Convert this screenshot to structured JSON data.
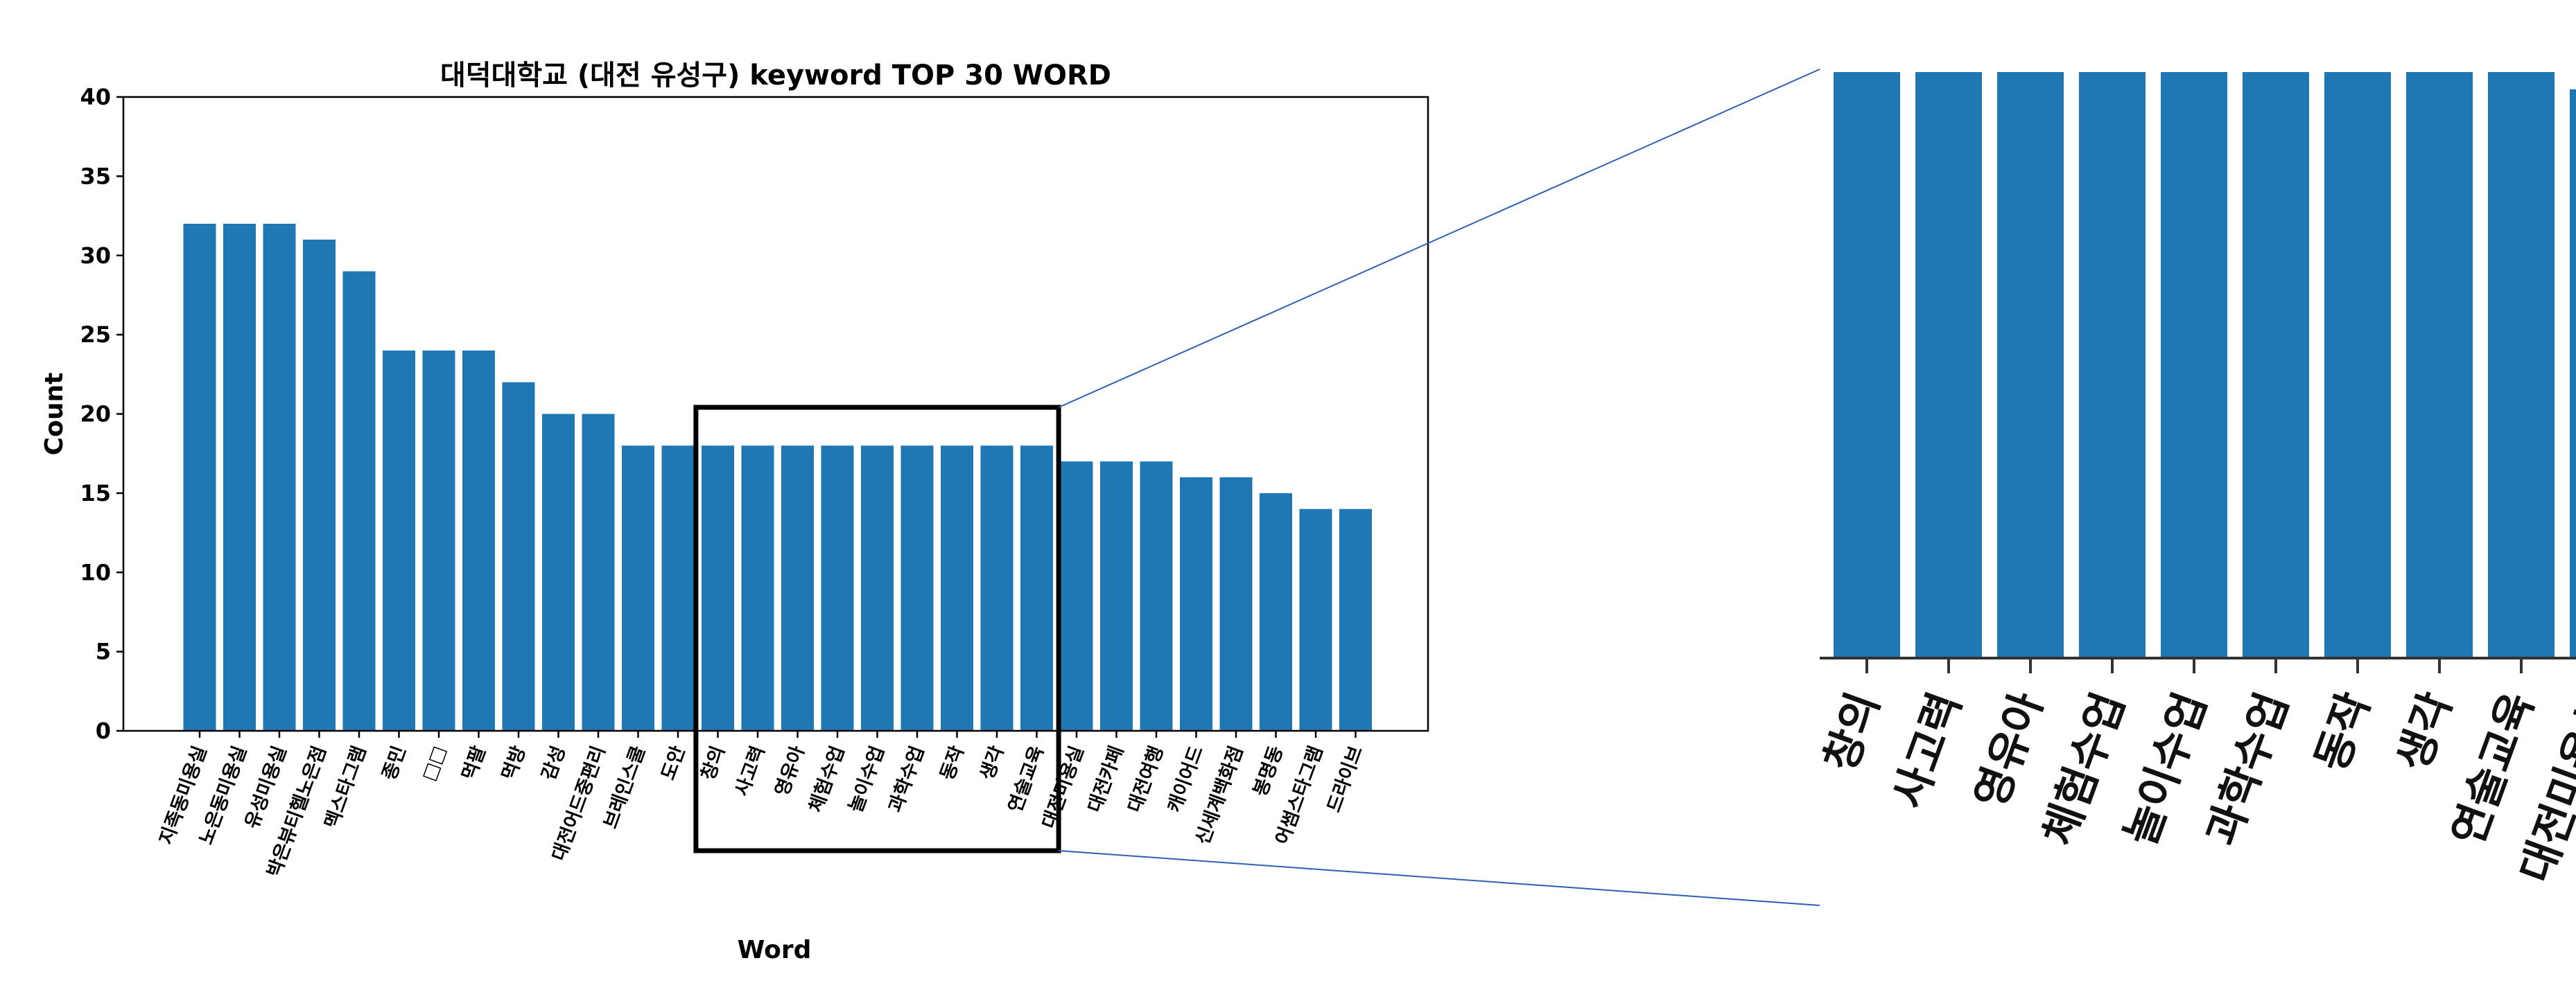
{
  "chart_data": {
    "type": "bar",
    "title": "대덕대학교 (대전 유성구) keyword TOP 30 WORD",
    "xlabel": "Word",
    "ylabel": "Count",
    "ylim": [
      0,
      40
    ],
    "yticks": [
      0,
      5,
      10,
      15,
      20,
      25,
      30,
      35,
      40
    ],
    "color": "#1f77b4",
    "grid": false,
    "categories": [
      "지족동미용실",
      "노은동미용실",
      "유성미용실",
      "박은뷰티헬노은점",
      "멕스타그램",
      "종민",
      "□□",
      "먹팔",
      "먹방",
      "감성",
      "대전어드중편리",
      "브레인스쿨",
      "도안",
      "창의",
      "사고력",
      "영유아",
      "체험수업",
      "놀이수업",
      "과학수업",
      "동작",
      "생각",
      "연술교육",
      "대전미용실",
      "대전카페",
      "대전여행",
      "캐이어드",
      "신세계백화점",
      "봉명동",
      "어썸스타그램",
      "드라이브"
    ],
    "values": [
      32,
      32,
      32,
      31,
      29,
      24,
      24,
      24,
      22,
      20,
      20,
      18,
      18,
      18,
      18,
      18,
      18,
      18,
      18,
      18,
      18,
      18,
      17,
      17,
      17,
      16,
      16,
      15,
      14,
      14
    ],
    "zoom_region": {
      "categories": [
        "창의",
        "사고력",
        "영유아",
        "체험수업",
        "놀이수업",
        "과학수업",
        "동작",
        "생각",
        "연술교육"
      ]
    }
  }
}
